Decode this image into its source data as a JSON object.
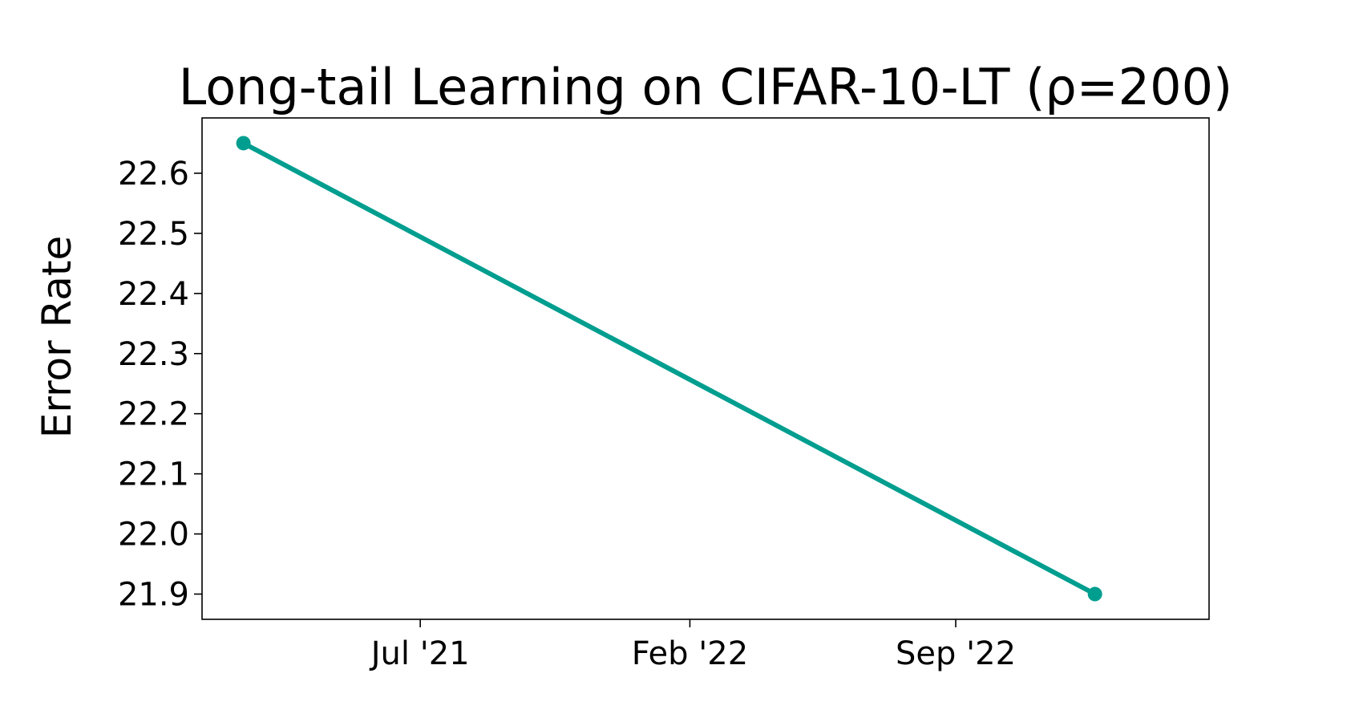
{
  "chart_data": {
    "type": "line",
    "title": "Long-tail Learning on CIFAR-10-LT (ρ=200)",
    "xlabel": "",
    "ylabel": "Error Rate",
    "x_type": "date",
    "x_ticks": [
      {
        "date": "2021-07-01",
        "label": "Jul '21"
      },
      {
        "date": "2022-02-01",
        "label": "Feb '22"
      },
      {
        "date": "2022-09-01",
        "label": "Sep '22"
      }
    ],
    "y_ticks": [
      21.9,
      22.0,
      22.1,
      22.2,
      22.3,
      22.4,
      22.5,
      22.6
    ],
    "xlim": [
      "2021-01-08",
      "2023-03-22"
    ],
    "ylim": [
      21.858,
      22.692
    ],
    "grid": false,
    "series": [
      {
        "color": "#009e8f",
        "points": [
          {
            "x": "2021-02-10",
            "y": 22.65
          },
          {
            "x": "2022-12-21",
            "y": 21.9
          }
        ]
      }
    ]
  }
}
